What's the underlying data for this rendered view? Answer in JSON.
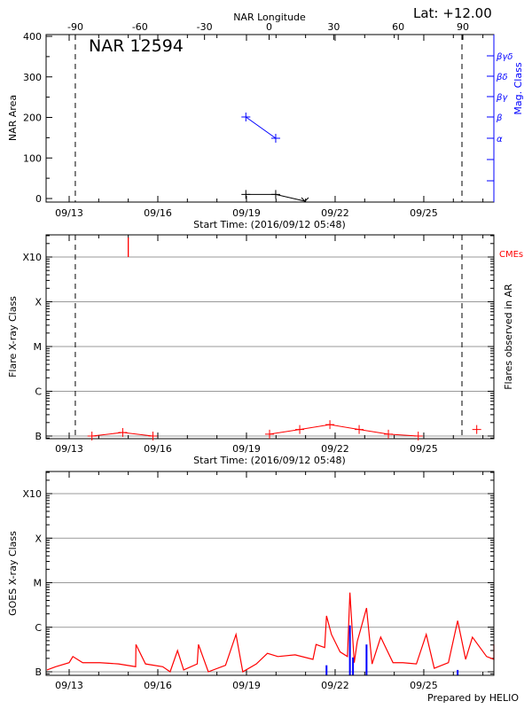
{
  "header": {
    "latitude_label": "Lat: +12.00",
    "top_axis_title": "NAR Longitude",
    "longitude_ticks": [
      "-90",
      "-60",
      "-30",
      "0",
      "30",
      "60",
      "90"
    ]
  },
  "footer": {
    "credit": "Prepared by HELIO"
  },
  "colors": {
    "flux_long": "#ff0000",
    "flux_short": "#0000ff",
    "mag_class": "#0000ff",
    "area": "#000000",
    "cme": "#ff0000",
    "grid": "#999999"
  },
  "chart_data": [
    {
      "type": "line",
      "title": "NAR 12594",
      "xlabel": "Start Time: (2016/09/12 05:48)",
      "ylabel": "NAR Area",
      "y2label": "Mag. Class",
      "x_tick_labels": [
        "09/13",
        "09/16",
        "09/19",
        "09/22",
        "09/25"
      ],
      "y_tick_labels": [
        "0",
        "100",
        "200",
        "300",
        "400"
      ],
      "ylim": [
        0,
        400
      ],
      "y2_tick_labels": [
        "α",
        "β",
        "βγ",
        "βδ",
        "βγδ"
      ],
      "disk_passage_markers": [
        "09/13 05:00",
        "09/26 07:00"
      ],
      "series": [
        {
          "label": "area",
          "points": [
            {
              "t": "09/18 23:30",
              "v": 10
            },
            {
              "t": "09/19 23:45",
              "v": 10
            },
            {
              "t": "09/20 23:30",
              "v": 0
            }
          ]
        },
        {
          "label": "mag_class",
          "points": [
            {
              "t": "09/18 23:30",
              "v": "β"
            },
            {
              "t": "09/19 23:45",
              "v": "α"
            }
          ]
        }
      ]
    },
    {
      "type": "scatter",
      "xlabel": "Start Time: (2016/09/12 05:48)",
      "ylabel": "Flare X-ray Class",
      "y2label": "Flares observed in AR",
      "cme_label": "CMEs",
      "x_tick_labels": [
        "09/13",
        "09/16",
        "09/19",
        "09/22",
        "09/25"
      ],
      "y_tick_labels": [
        "B",
        "C",
        "M",
        "X",
        "X10"
      ],
      "y_scale": "log",
      "grid": true,
      "disk_passage_markers": [
        "09/13 05:00",
        "09/26 07:00"
      ],
      "cmes": [
        "09/15 00:00"
      ],
      "flares_connected": [
        [
          {
            "t": "09/13 18:30",
            "class": "B1.0"
          },
          {
            "t": "09/14 19:30",
            "class": "B1.2"
          },
          {
            "t": "09/15 20:00",
            "class": "B1.0"
          }
        ],
        [
          {
            "t": "09/19 18:45",
            "class": "B1.1"
          },
          {
            "t": "09/20 19:15",
            "class": "B1.4"
          },
          {
            "t": "09/21 19:45",
            "class": "B1.8"
          },
          {
            "t": "09/22 19:30",
            "class": "B1.4"
          },
          {
            "t": "09/23 19:15",
            "class": "B1.1"
          },
          {
            "t": "09/24 19:30",
            "class": "B1.0"
          }
        ]
      ],
      "flares_isolated": [
        {
          "t": "09/26 19:00",
          "class": "B1.4"
        }
      ]
    },
    {
      "type": "line",
      "ylabel": "GOES X-ray Class",
      "x_tick_labels": [
        "09/13",
        "09/16",
        "09/19",
        "09/22",
        "09/25"
      ],
      "y_tick_labels": [
        "B",
        "C",
        "M",
        "X",
        "X10"
      ],
      "y_scale": "log",
      "grid": true,
      "series_long": [
        [
          "09/12 06:00",
          1.1e-07
        ],
        [
          "09/12 13:00",
          1.3e-07
        ],
        [
          "09/13 00:00",
          1.6e-07
        ],
        [
          "09/13 03:00",
          2.2e-07
        ],
        [
          "09/13 11:00",
          1.6e-07
        ],
        [
          "09/14 01:00",
          1.6e-07
        ],
        [
          "09/14 16:00",
          1.5e-07
        ],
        [
          "09/15 06:00",
          1.3e-07
        ],
        [
          "09/15 06:15",
          4.1e-07
        ],
        [
          "09/15 14:00",
          1.5e-07
        ],
        [
          "09/16 04:00",
          1.3e-07
        ],
        [
          "09/16 10:00",
          1e-07
        ],
        [
          "09/16 16:00",
          3e-07
        ],
        [
          "09/16 21:00",
          1.1e-07
        ],
        [
          "09/17 08:00",
          1.5e-07
        ],
        [
          "09/17 09:00",
          4.1e-07
        ],
        [
          "09/17 17:00",
          1e-07
        ],
        [
          "09/18 07:00",
          1.4e-07
        ],
        [
          "09/18 15:30",
          6.9e-07
        ],
        [
          "09/18 21:00",
          1e-07
        ],
        [
          "09/19 08:00",
          1.5e-07
        ],
        [
          "09/19 17:00",
          2.6e-07
        ],
        [
          "09/20 01:30",
          2.2e-07
        ],
        [
          "09/20 15:30",
          2.4e-07
        ],
        [
          "09/21 06:00",
          1.9e-07
        ],
        [
          "09/21 08:30",
          4.1e-07
        ],
        [
          "09/21 15:30",
          3.5e-07
        ],
        [
          "09/21 17:00",
          1.8e-06
        ],
        [
          "09/21 21:00",
          6.9e-07
        ],
        [
          "09/22 04:00",
          2.8e-07
        ],
        [
          "09/22 10:00",
          2.2e-07
        ],
        [
          "09/22 12:00",
          6e-06
        ],
        [
          "09/22 15:30",
          1.6e-07
        ],
        [
          "09/22 18:00",
          4.8e-07
        ],
        [
          "09/23 01:30",
          2.7e-06
        ],
        [
          "09/23 06:00",
          1.5e-07
        ],
        [
          "09/23 13:00",
          6e-07
        ],
        [
          "09/23 23:00",
          1.6e-07
        ],
        [
          "09/24 07:00",
          1.6e-07
        ],
        [
          "09/24 18:00",
          1.5e-07
        ],
        [
          "09/25 02:00",
          6.9e-07
        ],
        [
          "09/25 08:30",
          1.2e-07
        ],
        [
          "09/25 20:00",
          1.6e-07
        ],
        [
          "09/26 03:30",
          1.4e-06
        ],
        [
          "09/26 10:00",
          1.9e-07
        ],
        [
          "09/26 15:30",
          6e-07
        ],
        [
          "09/27 03:00",
          2.2e-07
        ],
        [
          "09/27 14:00",
          1.9e-07
        ],
        [
          "09/27 17:00",
          4.1e-07
        ]
      ],
      "series_short": [
        [
          "09/21 17:00",
          1.4e-07
        ],
        [
          "09/22 12:00",
          1.1e-06
        ],
        [
          "09/22 14:30",
          2.1e-07
        ],
        [
          "09/23 01:30",
          4.1e-07
        ],
        [
          "09/26 03:30",
          1.1e-07
        ]
      ]
    }
  ]
}
